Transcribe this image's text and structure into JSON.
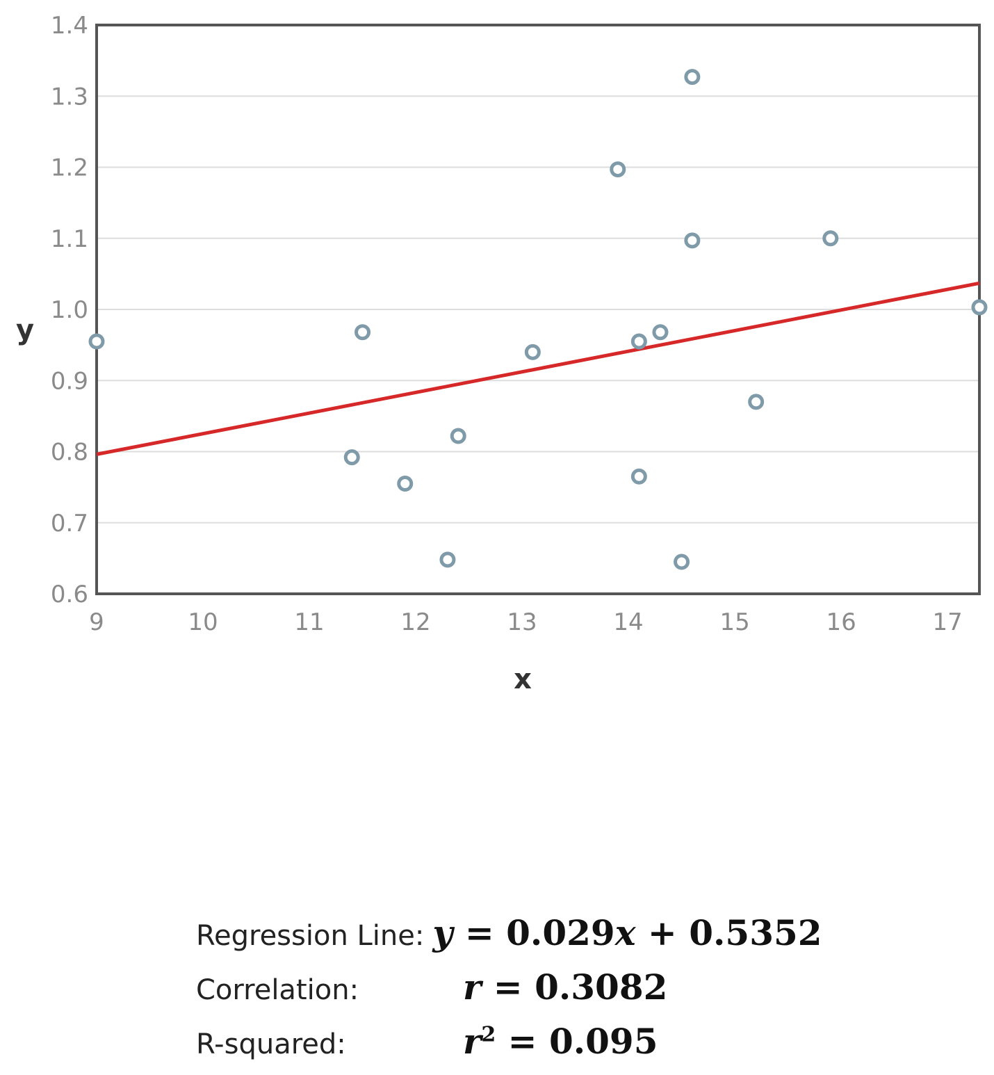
{
  "chart_data": {
    "type": "scatter",
    "title": "",
    "xlabel": "x",
    "ylabel": "y",
    "xlim": [
      9,
      17.3
    ],
    "ylim": [
      0.6,
      1.4
    ],
    "x_ticks": [
      "9",
      "10",
      "11",
      "12",
      "13",
      "14",
      "15",
      "16",
      "17"
    ],
    "y_ticks": [
      "0.6",
      "0.7",
      "0.8",
      "0.9",
      "1.0",
      "1.1",
      "1.2",
      "1.3",
      "1.4"
    ],
    "grid": "horizontal",
    "series": [
      {
        "name": "points",
        "x": [
          9.0,
          11.4,
          11.5,
          11.9,
          12.3,
          12.4,
          13.1,
          13.9,
          14.1,
          14.1,
          14.3,
          14.5,
          14.6,
          14.6,
          15.2,
          15.9,
          17.3
        ],
        "y": [
          0.955,
          0.792,
          0.968,
          0.755,
          0.648,
          0.822,
          0.94,
          1.197,
          0.955,
          0.765,
          0.968,
          0.645,
          1.097,
          1.327,
          0.87,
          1.1,
          1.003
        ]
      }
    ],
    "regression": {
      "slope": 0.029,
      "intercept": 0.5352,
      "x_range": [
        9,
        17.3
      ]
    },
    "colors": {
      "points": "#7f9aa8",
      "line": "#d62828",
      "grid": "#dddddd",
      "frame": "#555555"
    }
  },
  "stats": {
    "regression_label": "Regression Line:",
    "regression_lhs": "y",
    "regression_slope": "0.029",
    "regression_var": "x",
    "regression_intercept": "0.5352",
    "correlation_label": "Correlation:",
    "correlation_var": "r",
    "correlation_value": "0.3082",
    "rsquared_label": "R-squared:",
    "rsquared_var": "r",
    "rsquared_exp": "2",
    "rsquared_value": "0.095"
  }
}
